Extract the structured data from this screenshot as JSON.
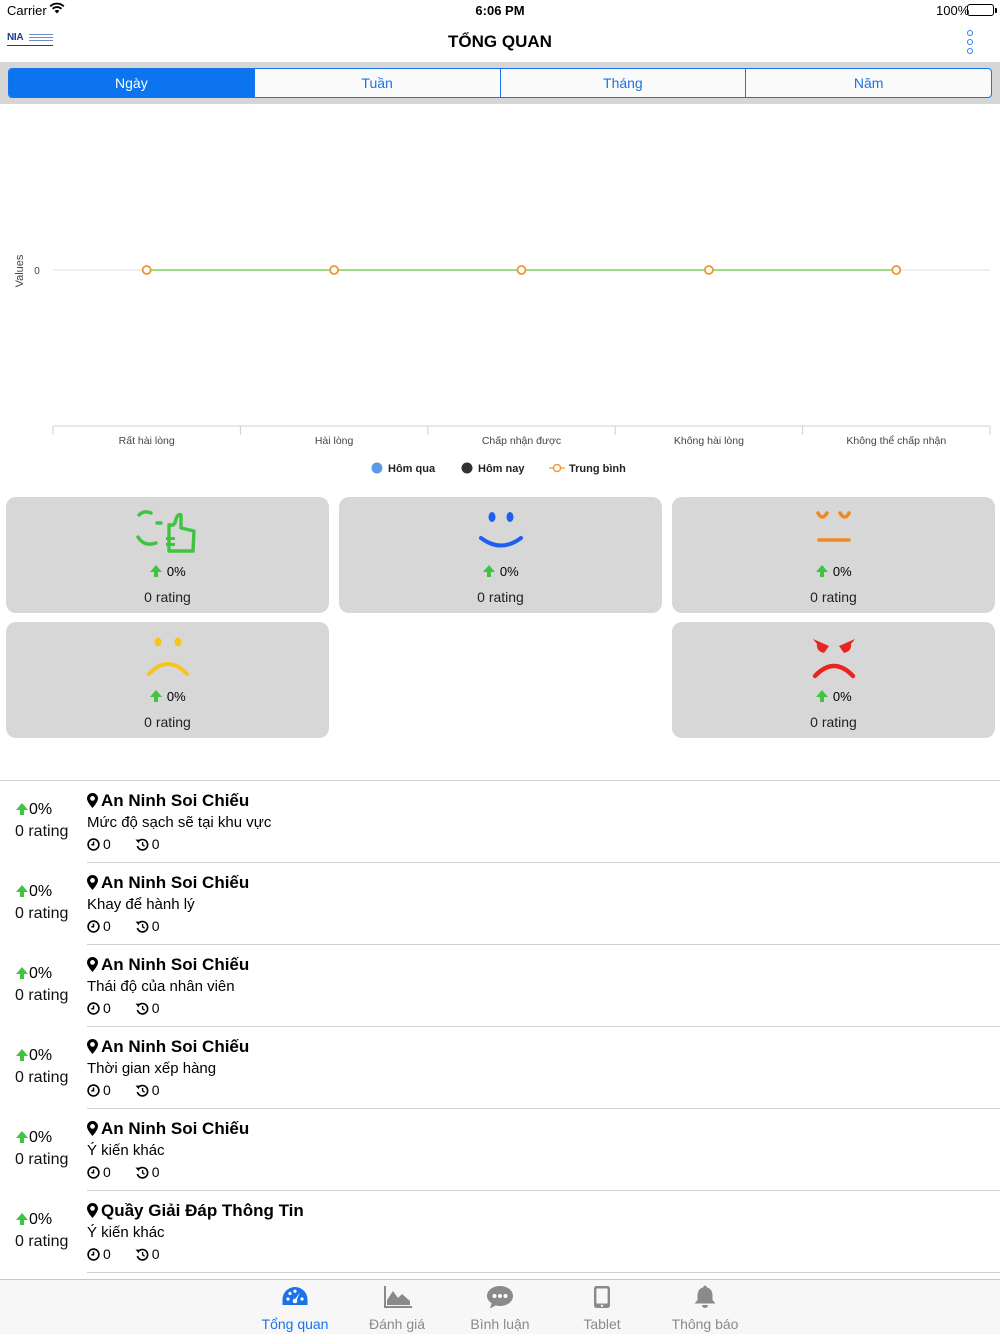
{
  "status_bar": {
    "carrier": "Carrier",
    "time": "6:06 PM",
    "battery": "100%"
  },
  "header": {
    "logo": "NIA",
    "title": "TỔNG QUAN"
  },
  "period_tabs": [
    {
      "label": "Ngày",
      "active": true
    },
    {
      "label": "Tuần",
      "active": false
    },
    {
      "label": "Tháng",
      "active": false
    },
    {
      "label": "Năm",
      "active": false
    }
  ],
  "chart_data": {
    "type": "line",
    "categories": [
      "Rất hài lòng",
      "Hài lòng",
      "Chấp nhận được",
      "Không hài lòng",
      "Không thể chấp nhận"
    ],
    "ylabel": "Values",
    "y_ticks": [
      "0"
    ],
    "series": [
      {
        "name": "Hôm qua",
        "type": "bar",
        "color": "#5b9be6",
        "values": [
          0,
          0,
          0,
          0,
          0
        ]
      },
      {
        "name": "Hôm nay",
        "type": "bar",
        "color": "#333333",
        "values": [
          0,
          0,
          0,
          0,
          0
        ]
      },
      {
        "name": "Trung bình",
        "type": "line",
        "color": "#7ed35a",
        "marker_color": "#f0962c",
        "values": [
          0,
          0,
          0,
          0,
          0
        ]
      }
    ],
    "legend_position": "bottom"
  },
  "summary_cards": [
    {
      "icon": "thumbs-up-face-icon",
      "color": "#3fc43f",
      "percent": "0%",
      "rating": "0 rating"
    },
    {
      "icon": "smile-face-icon",
      "color": "#1e5ff0",
      "percent": "0%",
      "rating": "0 rating"
    },
    {
      "icon": "neutral-face-icon",
      "color": "#f08a1e",
      "percent": "0%",
      "rating": "0 rating"
    },
    {
      "icon": "sad-face-icon",
      "color": "#f7c41e",
      "percent": "0%",
      "rating": "0 rating"
    },
    {
      "icon": "angry-face-icon",
      "color": "#e8251e",
      "percent": "0%",
      "rating": "0 rating"
    }
  ],
  "list": [
    {
      "percent": "0%",
      "rating": "0 rating",
      "location": "An Ninh Soi Chiếu",
      "criterion": "Mức độ sạch sẽ tại khu vực",
      "count_a": "0",
      "count_b": "0"
    },
    {
      "percent": "0%",
      "rating": "0 rating",
      "location": "An Ninh Soi Chiếu",
      "criterion": "Khay để hành lý",
      "count_a": "0",
      "count_b": "0"
    },
    {
      "percent": "0%",
      "rating": "0 rating",
      "location": "An Ninh Soi Chiếu",
      "criterion": "Thái độ của nhân viên",
      "count_a": "0",
      "count_b": "0"
    },
    {
      "percent": "0%",
      "rating": "0 rating",
      "location": "An Ninh Soi Chiếu",
      "criterion": "Thời gian xếp hàng",
      "count_a": "0",
      "count_b": "0"
    },
    {
      "percent": "0%",
      "rating": "0 rating",
      "location": "An Ninh Soi Chiếu",
      "criterion": "Ý kiến khác",
      "count_a": "0",
      "count_b": "0"
    },
    {
      "percent": "0%",
      "rating": "0 rating",
      "location": "Quầy Giải Đáp Thông Tin",
      "criterion": "Ý kiến khác",
      "count_a": "0",
      "count_b": "0"
    }
  ],
  "tab_bar": [
    {
      "label": "Tổng quan",
      "icon": "dashboard-icon",
      "active": true
    },
    {
      "label": "Đánh giá",
      "icon": "area-chart-icon",
      "active": false
    },
    {
      "label": "Bình luận",
      "icon": "comment-icon",
      "active": false
    },
    {
      "label": "Tablet",
      "icon": "tablet-icon",
      "active": false
    },
    {
      "label": "Thông báo",
      "icon": "bell-icon",
      "active": false
    }
  ],
  "colors": {
    "accent": "#1a73e8",
    "up_arrow": "#3fc43f",
    "card_bg": "#d7d7d7"
  }
}
